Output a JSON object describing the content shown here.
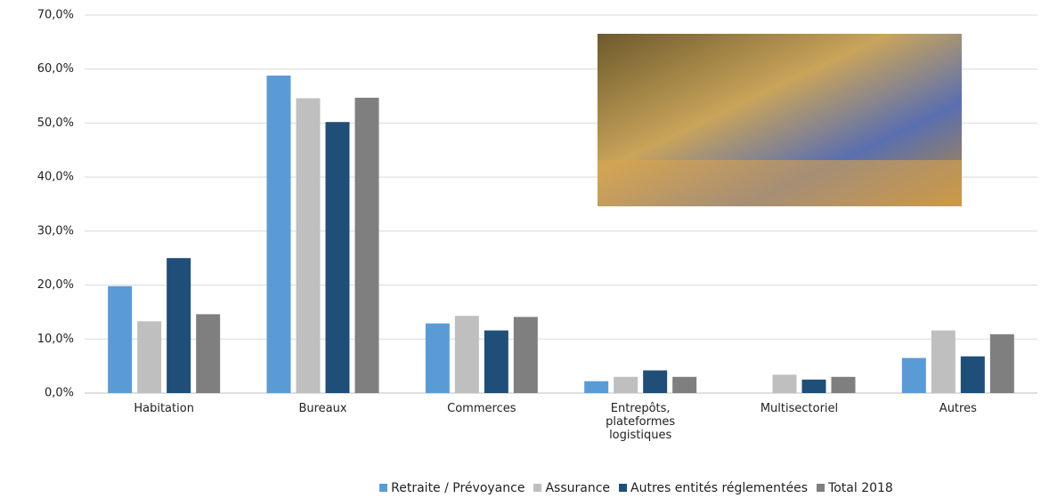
{
  "chart_data": {
    "type": "bar",
    "categories": [
      "Habitation",
      "Bureaux",
      "Commerces",
      "Entrepôts, plateformes logistiques",
      "Multisectoriel",
      "Autres"
    ],
    "series": [
      {
        "name": "Retraite / Prévoyance",
        "color": "#5b9bd5",
        "values": [
          19.8,
          58.8,
          12.9,
          2.2,
          0,
          6.5
        ]
      },
      {
        "name": "Assurance",
        "color": "#bfbfbf",
        "values": [
          13.3,
          54.6,
          14.3,
          3.0,
          3.4,
          11.6
        ]
      },
      {
        "name": "Autres entités réglementées",
        "color": "#1f4e79",
        "values": [
          25.0,
          50.2,
          11.6,
          4.2,
          2.5,
          6.8
        ]
      },
      {
        "name": "Total 2018",
        "color": "#7f7f7f",
        "values": [
          14.6,
          54.7,
          14.1,
          3.0,
          3.0,
          10.9
        ]
      }
    ],
    "ylim": [
      0,
      70
    ],
    "yticks": [
      {
        "value": 0,
        "label": "0,0%"
      },
      {
        "value": 10,
        "label": "10,0%"
      },
      {
        "value": 20,
        "label": "20,0%"
      },
      {
        "value": 30,
        "label": "30,0%"
      },
      {
        "value": 40,
        "label": "40,0%"
      },
      {
        "value": 50,
        "label": "50,0%"
      },
      {
        "value": 60,
        "label": "60,0%"
      },
      {
        "value": 70,
        "label": "70,0%"
      }
    ],
    "grid": true
  }
}
